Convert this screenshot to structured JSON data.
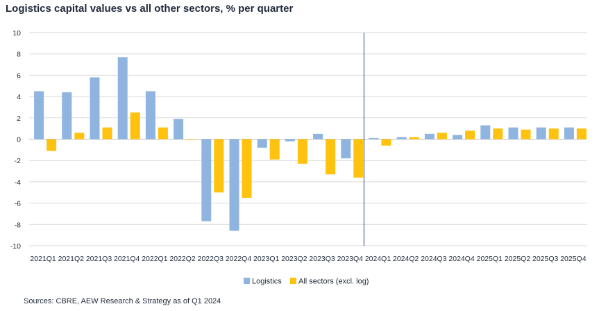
{
  "chart_data": {
    "type": "bar",
    "title": "Logistics capital values vs all other sectors, % per quarter",
    "source": "Sources: CBRE, AEW Research & Strategy as of Q1 2024",
    "xlabel": "",
    "ylabel": "",
    "ylim": [
      -10,
      10
    ],
    "yticks": [
      -10,
      -8,
      -6,
      -4,
      -2,
      0,
      2,
      4,
      6,
      8,
      10
    ],
    "grid": true,
    "legend_position": "bottom",
    "forecast_divider_after": "2023Q4",
    "categories": [
      "2021Q1",
      "2021Q2",
      "2021Q3",
      "2021Q4",
      "2022Q1",
      "2022Q2",
      "2022Q3",
      "2022Q4",
      "2023Q1",
      "2023Q2",
      "2023Q3",
      "2023Q4",
      "2024Q1",
      "2024Q2",
      "2024Q3",
      "2024Q4",
      "2025Q1",
      "2025Q2",
      "2025Q3",
      "2025Q4"
    ],
    "series": [
      {
        "name": "Logistics",
        "color": "#8fb4e0",
        "values": [
          4.5,
          4.4,
          5.8,
          7.7,
          4.5,
          1.9,
          -7.7,
          -8.6,
          -0.8,
          -0.2,
          0.5,
          -1.8,
          0.1,
          0.2,
          0.5,
          0.4,
          1.3,
          1.1,
          1.1,
          1.1
        ]
      },
      {
        "name": "All sectors (excl. log)",
        "color": "#ffc20e",
        "values": [
          -1.1,
          0.6,
          1.1,
          2.5,
          1.1,
          -0.05,
          -5.0,
          -5.5,
          -1.9,
          -2.3,
          -3.3,
          -3.6,
          -0.6,
          0.2,
          0.6,
          0.8,
          1.0,
          0.9,
          1.0,
          1.0
        ]
      }
    ]
  }
}
